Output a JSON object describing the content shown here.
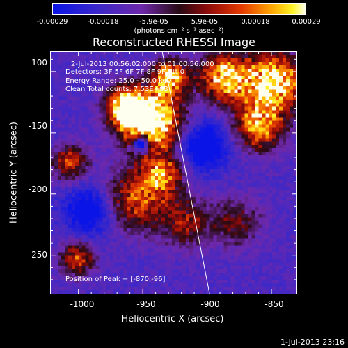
{
  "colorbar": {
    "ticks": [
      "-0.00029",
      "-0.00018",
      "-5.9e-05",
      "5.9e-05",
      "0.00018",
      "0.00029"
    ],
    "units": "(photons cm⁻² s⁻¹ asec⁻²)",
    "min": -0.00029,
    "max": 0.00029
  },
  "title": "Reconstructed RHESSI Image",
  "annotations": {
    "time_range": "2-Jul-2013 00:56:02.000 to 01:00:56.000",
    "detectors": "Detectors: 3F 5F 6F 7F 8F 9F Att 0",
    "energy": "Energy Range: 25.0 - 50.0 keV",
    "clean": "Clean     Total counts: 7.53E+03",
    "peak": "Position of Peak = [-870,-96]"
  },
  "axes": {
    "xlabel": "Heliocentric X (arcsec)",
    "ylabel": "Heliocentric Y (arcsec)",
    "xticks": [
      "-1000",
      "-950",
      "-900",
      "-850"
    ],
    "yticks": [
      "-100",
      "-150",
      "-200",
      "-250"
    ],
    "xlim": [
      -1022,
      -830
    ],
    "ylim": [
      -282,
      -83
    ]
  },
  "limb_line": {
    "x_top": -935,
    "y_top": -83,
    "x_bottom": -898,
    "y_bottom": -282
  },
  "footer": {
    "timestamp": "1-Jul-2013 23:16"
  },
  "chart_data": {
    "type": "heatmap",
    "title": "Reconstructed RHESSI Image",
    "xlabel": "Heliocentric X (arcsec)",
    "ylabel": "Heliocentric Y (arcsec)",
    "xlim": [
      -1022,
      -830
    ],
    "ylim": [
      -282,
      -83
    ],
    "value_range": [
      -0.00029,
      0.00029
    ],
    "peak_position": [
      -870,
      -96
    ]
  }
}
